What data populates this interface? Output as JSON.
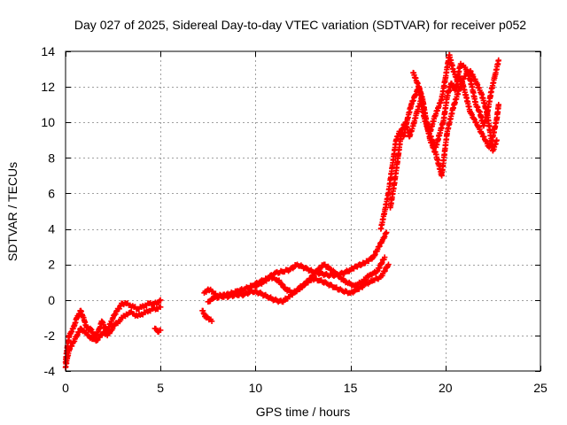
{
  "chart_data": {
    "type": "scatter",
    "title": "Day 027 of 2025, Sidereal Day-to-day VTEC variation (SDTVAR) for receiver p052",
    "xlabel": "GPS time / hours",
    "ylabel": "SDTVAR / TECUs",
    "xlim": [
      0,
      25
    ],
    "ylim": [
      -4,
      14
    ],
    "xticks": [
      0,
      5,
      10,
      15,
      20,
      25
    ],
    "yticks": [
      -4,
      -2,
      0,
      2,
      4,
      6,
      8,
      10,
      12,
      14
    ],
    "xtick_labels": [
      "0",
      "5",
      "10",
      "15",
      "20",
      "25"
    ],
    "ytick_labels": [
      "-4",
      "-2",
      "0",
      "2",
      "4",
      "6",
      "8",
      "10",
      "12",
      "14"
    ],
    "grid": true,
    "legend": "none",
    "marker": "plus",
    "color": "#ff0000",
    "series": [
      {
        "name": "SDTVAR",
        "segments": [
          {
            "x": [
              0.0,
              0.05,
              0.1,
              0.2,
              0.3,
              0.4,
              0.5,
              0.6,
              0.7,
              0.8,
              0.9,
              1.0,
              1.1,
              1.2,
              1.3,
              1.4,
              1.5,
              1.6,
              1.7,
              1.8,
              1.9,
              2.0,
              2.1,
              2.2,
              2.3,
              2.4,
              2.5,
              2.6,
              2.7,
              2.8,
              2.9,
              3.0,
              3.2,
              3.4,
              3.6,
              3.8,
              4.0,
              4.2,
              4.4,
              4.6,
              4.8,
              5.0
            ],
            "y": [
              -3.5,
              -3.0,
              -2.6,
              -2.0,
              -1.8,
              -1.6,
              -1.3,
              -1.0,
              -0.8,
              -0.6,
              -0.9,
              -1.2,
              -1.5,
              -1.7,
              -1.6,
              -1.8,
              -2.0,
              -2.0,
              -1.8,
              -1.6,
              -1.2,
              -1.4,
              -1.6,
              -1.8,
              -1.5,
              -1.2,
              -1.0,
              -0.8,
              -0.6,
              -0.5,
              -0.3,
              -0.2,
              -0.2,
              -0.3,
              -0.4,
              -0.5,
              -0.4,
              -0.3,
              -0.2,
              -0.2,
              -0.2,
              0.0
            ]
          },
          {
            "x": [
              0.0,
              0.1,
              0.2,
              0.4,
              0.6,
              0.8,
              1.0,
              1.2,
              1.4,
              1.6,
              1.8,
              2.0,
              2.2,
              2.4,
              2.6,
              2.8,
              3.0,
              3.2,
              3.4,
              3.6,
              3.8,
              4.0,
              4.2,
              4.4,
              4.6,
              4.8,
              5.0
            ],
            "y": [
              -3.8,
              -3.2,
              -2.8,
              -2.4,
              -2.0,
              -1.6,
              -1.8,
              -2.0,
              -2.2,
              -2.3,
              -2.1,
              -1.8,
              -2.0,
              -1.7,
              -1.4,
              -1.2,
              -1.0,
              -0.8,
              -0.7,
              -0.8,
              -0.9,
              -0.8,
              -0.7,
              -0.6,
              -0.5,
              -0.5,
              -0.4
            ]
          },
          {
            "x": [
              4.7,
              4.8,
              4.9,
              5.0
            ],
            "y": [
              -1.6,
              -1.7,
              -1.8,
              -1.7
            ]
          },
          {
            "x": [
              7.2,
              7.3,
              7.4,
              7.5,
              7.6,
              7.7
            ],
            "y": [
              -0.6,
              -0.8,
              -1.0,
              -1.0,
              -1.1,
              -1.2
            ]
          },
          {
            "x": [
              7.3,
              7.5,
              7.7,
              8.0,
              8.3,
              8.6,
              9.0,
              9.4,
              9.8,
              10.2,
              10.6,
              11.0,
              11.4,
              11.8,
              12.2,
              12.6,
              13.0,
              13.4,
              13.8,
              14.2,
              14.6,
              15.0,
              15.3,
              15.6,
              15.9,
              16.2,
              16.5,
              16.7,
              16.9
            ],
            "y": [
              0.4,
              0.6,
              0.5,
              0.2,
              0.3,
              0.3,
              0.5,
              0.6,
              0.8,
              1.0,
              1.2,
              1.5,
              1.6,
              1.7,
              2.0,
              1.8,
              1.6,
              1.5,
              1.4,
              1.4,
              1.5,
              1.7,
              1.9,
              2.0,
              2.2,
              2.4,
              3.0,
              3.4,
              3.8
            ]
          },
          {
            "x": [
              7.5,
              7.8,
              8.2,
              8.6,
              9.0,
              9.4,
              9.8,
              10.2,
              10.6,
              11.0,
              11.4,
              11.8,
              12.2,
              12.6,
              13.0,
              13.4,
              13.8,
              14.2,
              14.6,
              15.0,
              15.4,
              15.8,
              16.2,
              16.6,
              17.0
            ],
            "y": [
              -0.1,
              0.1,
              0.2,
              0.2,
              0.3,
              0.3,
              0.5,
              0.4,
              0.2,
              0.0,
              -0.1,
              0.2,
              0.6,
              0.9,
              1.2,
              1.1,
              0.9,
              0.7,
              0.5,
              0.4,
              0.6,
              0.9,
              1.1,
              1.3,
              2.0
            ]
          },
          {
            "x": [
              10.0,
              10.4,
              10.8,
              11.2,
              11.6,
              12.0,
              12.4,
              12.8,
              13.2,
              13.6,
              14.0,
              14.4,
              14.8,
              15.2,
              15.6,
              16.0,
              16.4,
              16.8
            ],
            "y": [
              0.8,
              1.0,
              1.3,
              1.1,
              0.6,
              0.4,
              0.7,
              1.1,
              1.6,
              2.0,
              1.7,
              1.3,
              1.0,
              0.8,
              1.0,
              1.4,
              1.6,
              2.4
            ]
          },
          {
            "x": [
              16.6,
              16.8,
              17.0,
              17.2,
              17.4,
              17.6,
              17.8,
              18.0,
              18.2,
              18.4,
              18.6,
              18.8,
              19.0,
              19.2,
              19.4,
              19.6,
              19.8,
              20.0,
              20.2,
              20.4,
              20.6,
              20.8,
              21.0,
              21.2,
              21.4,
              21.6,
              21.8,
              22.0,
              22.2,
              22.4,
              22.6,
              22.8
            ],
            "y": [
              4.0,
              5.0,
              6.0,
              7.5,
              9.0,
              9.5,
              9.2,
              10.2,
              11.0,
              11.5,
              12.0,
              11.3,
              10.0,
              9.5,
              10.2,
              10.8,
              11.3,
              12.5,
              13.8,
              13.0,
              12.4,
              13.3,
              13.1,
              12.8,
              12.0,
              11.0,
              10.6,
              9.8,
              10.5,
              11.7,
              12.6,
              13.5
            ]
          },
          {
            "x": [
              17.1,
              17.3,
              17.5,
              17.7,
              17.9,
              18.1,
              18.3,
              18.5,
              18.7,
              18.9,
              19.1,
              19.3,
              19.5,
              19.7,
              19.9,
              20.1,
              20.3,
              20.5,
              20.7,
              20.9,
              21.1,
              21.3,
              21.5,
              21.7,
              21.9,
              22.1,
              22.3,
              22.5,
              22.7,
              22.8
            ],
            "y": [
              5.2,
              6.5,
              8.0,
              9.6,
              10.0,
              9.2,
              9.8,
              10.6,
              11.2,
              10.2,
              9.5,
              9.0,
              8.6,
              9.4,
              10.1,
              11.5,
              12.2,
              11.8,
              12.6,
              12.2,
              11.4,
              10.6,
              10.2,
              9.8,
              9.4,
              9.0,
              8.6,
              9.2,
              10.2,
              11.0
            ]
          },
          {
            "x": [
              18.3,
              18.6,
              18.9,
              19.2,
              19.5,
              19.8,
              20.1,
              20.4,
              20.7,
              21.0,
              21.3,
              21.6,
              21.9,
              22.2,
              22.5,
              22.7
            ],
            "y": [
              12.8,
              12.0,
              10.5,
              9.0,
              8.2,
              7.0,
              9.5,
              10.8,
              11.8,
              12.6,
              12.9,
              12.3,
              11.6,
              10.5,
              8.4,
              9.0
            ]
          }
        ]
      }
    ]
  }
}
